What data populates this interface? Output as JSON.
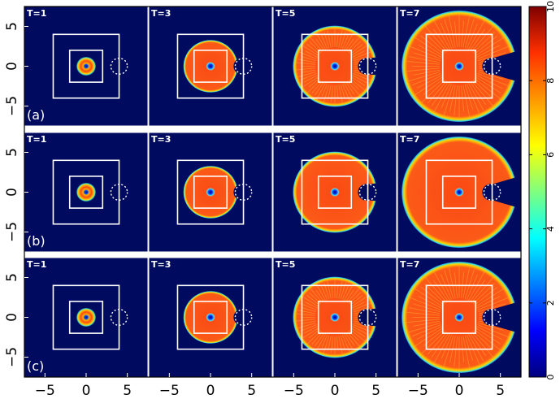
{
  "chart_data": {
    "type": "heatmap",
    "layout": "3 rows x 4 columns",
    "colormap": "jet",
    "background_color": "#000a5e",
    "overlay_color": "#ffffff",
    "xlim": [
      -7.5,
      7.5
    ],
    "ylim": [
      -7.5,
      7.5
    ],
    "x_ticks": [
      -5,
      0,
      5
    ],
    "y_ticks": [
      5,
      0,
      -5
    ],
    "x_tick_labels": [
      "−5",
      "0",
      "5"
    ],
    "y_tick_labels": [
      "5",
      "0",
      "−5"
    ],
    "colorbar": {
      "range": [
        0,
        10
      ],
      "ticks": [
        0,
        2,
        4,
        6,
        8,
        10
      ],
      "tick_labels": [
        "0",
        "2",
        "4",
        "6",
        "8",
        "10"
      ]
    },
    "overlays": {
      "inner_square": [
        -2,
        2,
        -2,
        2
      ],
      "outer_square_T1": [
        -4,
        4,
        -4,
        4
      ],
      "outer_square_T3": [
        -4,
        4,
        -4,
        4
      ],
      "outer_square_T5": [
        -4,
        4,
        -4,
        4
      ],
      "outer_square_T7": [
        -4,
        4,
        -4,
        4
      ],
      "dotted_circle_center": [
        4,
        0
      ],
      "dotted_circle_radius": 1
    },
    "rows": [
      {
        "label": "(a)",
        "panels": [
          {
            "time_label": "T=1",
            "front_radius": 1.2,
            "notch": false,
            "streaks": false
          },
          {
            "time_label": "T=3",
            "front_radius": 3.3,
            "notch": true,
            "streaks": false
          },
          {
            "time_label": "T=5",
            "front_radius": 5.1,
            "notch": true,
            "streaks": true
          },
          {
            "time_label": "T=7",
            "front_radius": 7.0,
            "notch": true,
            "streaks": true
          }
        ]
      },
      {
        "label": "(b)",
        "panels": [
          {
            "time_label": "T=1",
            "front_radius": 1.2,
            "notch": false,
            "streaks": false
          },
          {
            "time_label": "T=3",
            "front_radius": 3.3,
            "notch": true,
            "streaks": false
          },
          {
            "time_label": "T=5",
            "front_radius": 5.1,
            "notch": true,
            "streaks": false
          },
          {
            "time_label": "T=7",
            "front_radius": 7.0,
            "notch": true,
            "streaks": false
          }
        ]
      },
      {
        "label": "(c)",
        "panels": [
          {
            "time_label": "T=1",
            "front_radius": 1.2,
            "notch": false,
            "streaks": false
          },
          {
            "time_label": "T=3",
            "front_radius": 3.3,
            "notch": true,
            "streaks": false
          },
          {
            "time_label": "T=5",
            "front_radius": 5.1,
            "notch": true,
            "streaks": true
          },
          {
            "time_label": "T=7",
            "front_radius": 7.0,
            "notch": true,
            "streaks": true
          }
        ]
      }
    ]
  }
}
